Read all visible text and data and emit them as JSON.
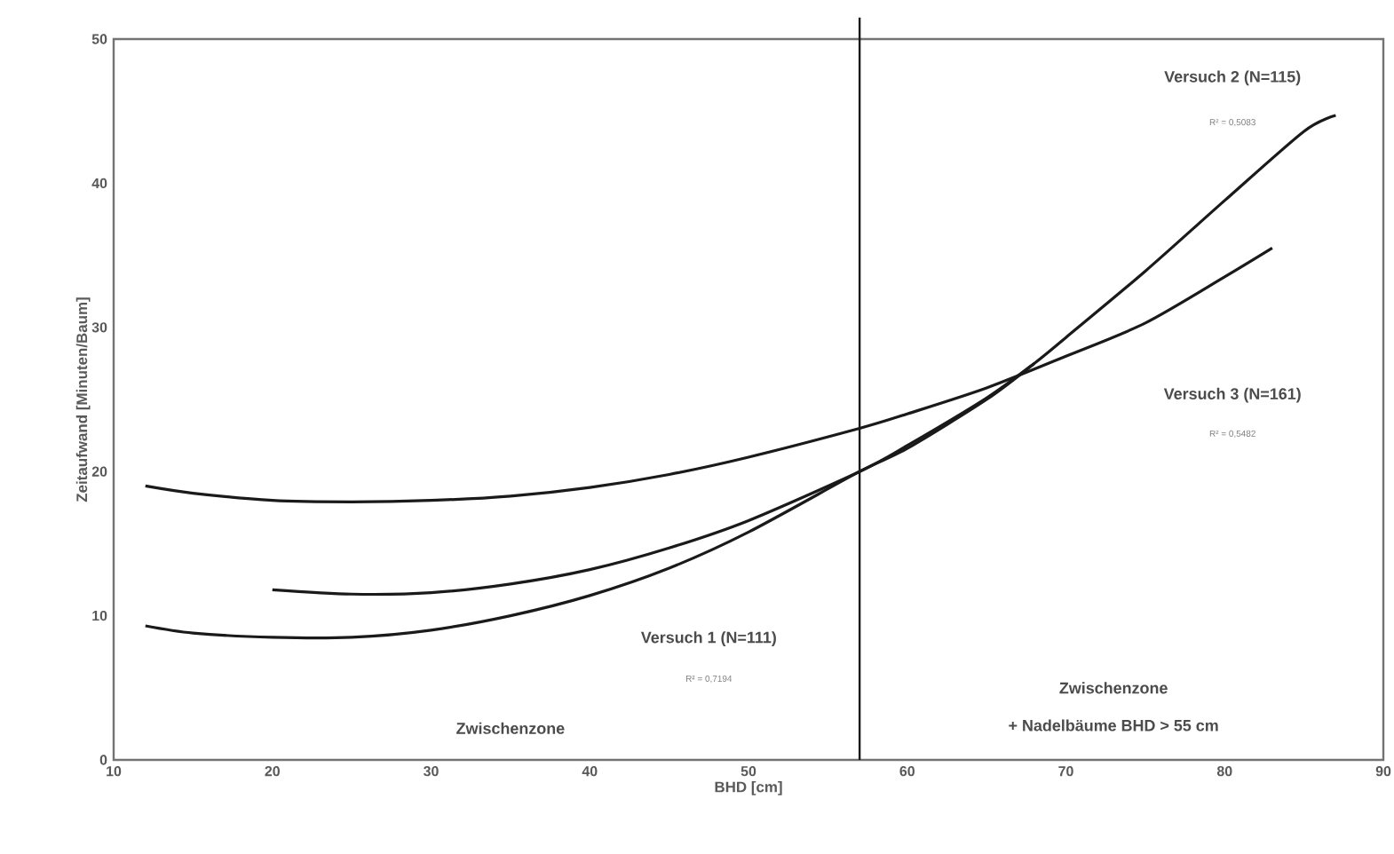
{
  "chart_data": {
    "type": "line",
    "xlabel": "BHD [cm]",
    "ylabel": "Zeitaufwand [Minuten/Baum]",
    "xlim": [
      10,
      90
    ],
    "ylim": [
      0,
      50
    ],
    "xticks": [
      10,
      20,
      30,
      40,
      50,
      60,
      70,
      80,
      90
    ],
    "yticks": [
      0,
      10,
      20,
      30,
      40,
      50
    ],
    "grid": false,
    "marker": "none",
    "line_style": "solid",
    "series": [
      {
        "color": "#1a1a1a",
        "x": [
          12,
          15,
          20,
          25,
          30,
          35,
          40,
          45,
          50,
          57,
          60,
          65,
          70,
          75,
          80,
          83
        ],
        "values": [
          19.0,
          18.5,
          18.0,
          17.9,
          18.0,
          18.3,
          18.9,
          19.8,
          21.0,
          23.0,
          24.0,
          25.8,
          28.0,
          30.3,
          33.5,
          35.5
        ]
      },
      {
        "color": "#1a1a1a",
        "x": [
          20,
          25,
          30,
          35,
          40,
          45,
          50,
          57,
          60,
          65,
          68,
          70,
          75,
          80,
          85,
          87
        ],
        "values": [
          11.8,
          11.5,
          11.6,
          12.2,
          13.2,
          14.7,
          16.6,
          20.0,
          21.8,
          25.1,
          27.5,
          29.3,
          33.9,
          38.8,
          43.6,
          44.7
        ]
      },
      {
        "color": "#1a1a1a",
        "x": [
          12,
          15,
          20,
          25,
          30,
          35,
          40,
          45,
          50,
          57,
          60,
          65,
          68
        ],
        "values": [
          9.3,
          8.8,
          8.5,
          8.5,
          9.0,
          10.0,
          11.4,
          13.3,
          15.8,
          20.0,
          21.6,
          25.0,
          27.5
        ]
      }
    ],
    "ref_lines": [
      {
        "axis": "x",
        "value": 57,
        "color": "#1a1a1a"
      }
    ],
    "annotations": [
      "Versuch 1 (N=111)",
      "R² = 0,7194",
      "Zwischenzone",
      "Versuch 2 (N=115)",
      "R² = 0,5083",
      "Versuch 3 (N=161)",
      "R² = 0,5482",
      "Zwischenzone",
      "+ Nadelbäume BHD > 55 cm"
    ]
  }
}
